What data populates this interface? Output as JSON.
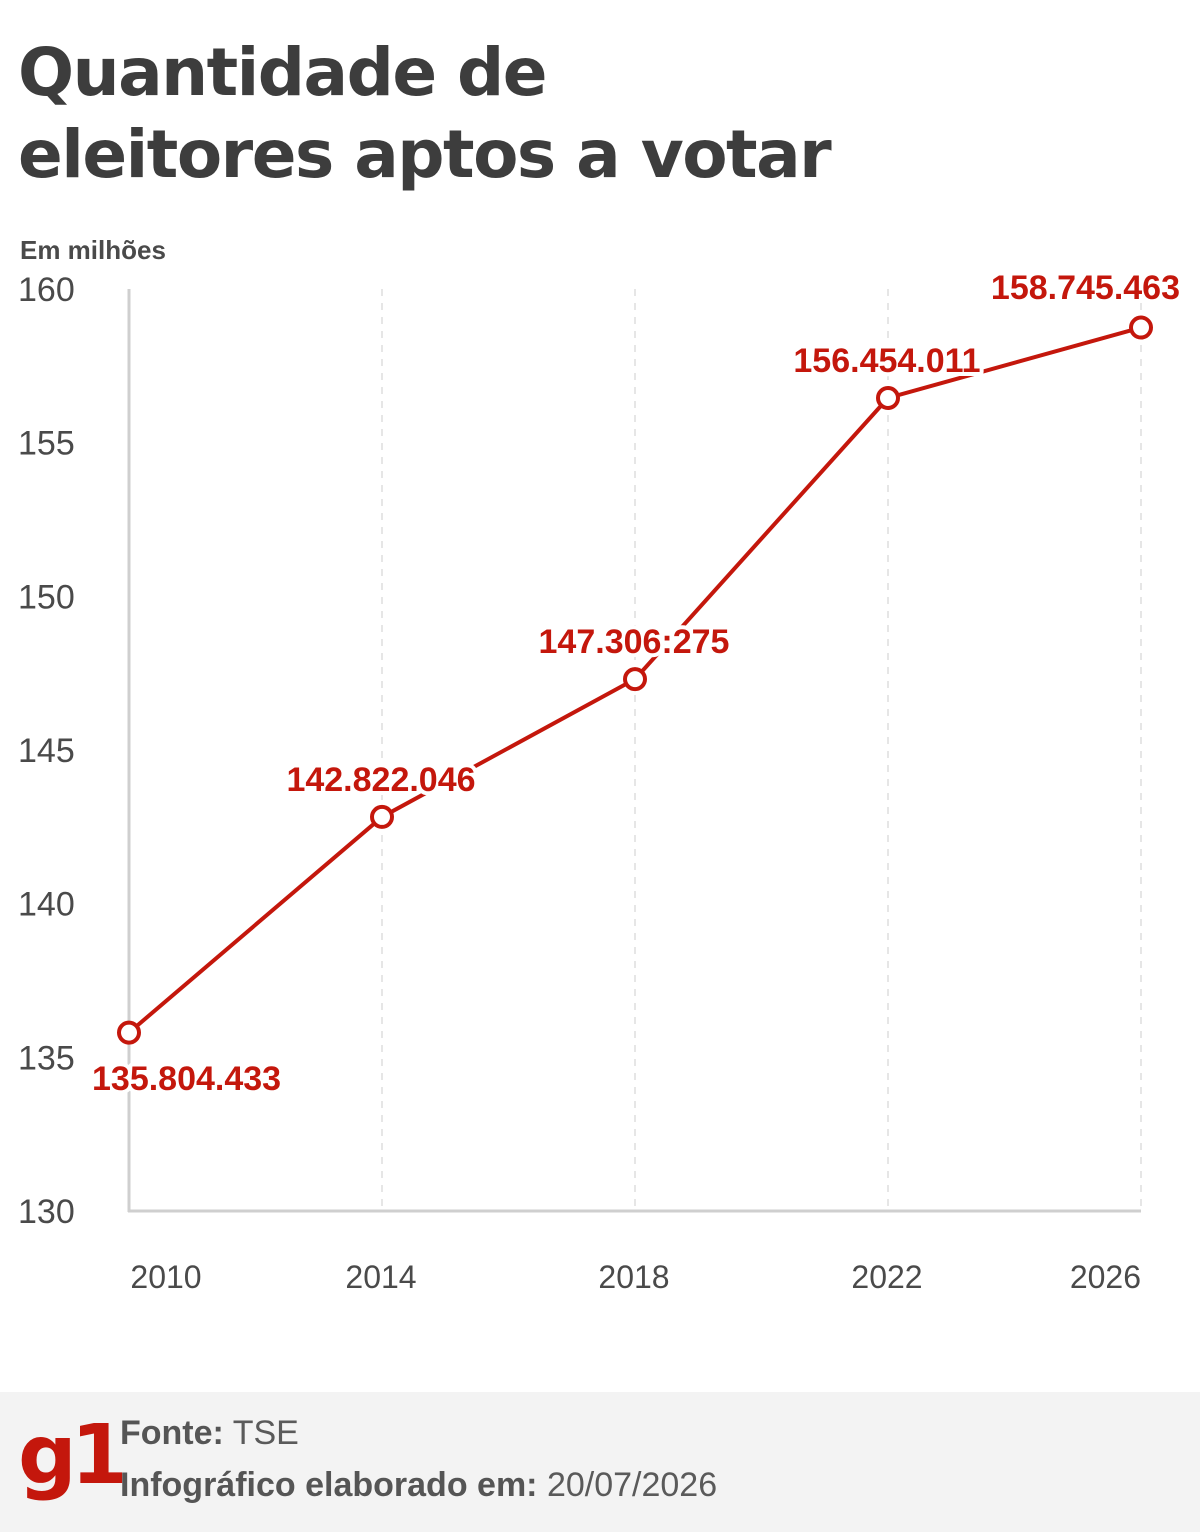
{
  "title_line1": "Quantidade de",
  "title_line2": "eleitores aptos a votar",
  "unit_label": "Em milhões",
  "colors": {
    "series": "#c4170c",
    "axis": "#cfcfcf",
    "grid": "#dddddd",
    "text": "#4a4a4a"
  },
  "chart_data": {
    "type": "line",
    "x": [
      "2010",
      "2014",
      "2018",
      "2022",
      "2026"
    ],
    "series": [
      {
        "values": [
          135.804433,
          142.822046,
          147.306275,
          156.454011,
          158.745463
        ],
        "labels": [
          "135.804.433",
          "142.822.046",
          "147.306:275",
          "156.454.011",
          "158.745.463"
        ]
      }
    ],
    "y_ticks": [
      "130",
      "135",
      "140",
      "145",
      "150",
      "155",
      "160"
    ],
    "ylim": [
      130,
      160
    ],
    "grid": "vertical-dashed",
    "legend": "none"
  },
  "footer": {
    "logo": "g1",
    "source_label": "Fonte:",
    "source_value": "TSE",
    "date_label": "Infográfico elaborado em:",
    "date_value": "20/07/2026"
  }
}
